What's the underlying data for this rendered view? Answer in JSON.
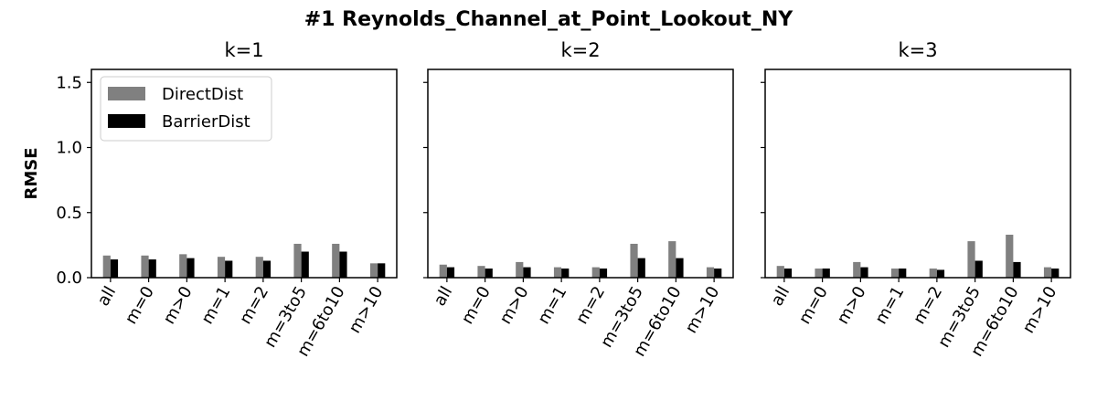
{
  "chart_data": {
    "type": "bar",
    "title": "#1 Reynolds_Channel_at_Point_Lookout_NY",
    "ylabel": "RMSE",
    "ylim": [
      0,
      1.6
    ],
    "yticks": [
      "0.0",
      "0.5",
      "1.0",
      "1.5"
    ],
    "ytick_values": [
      0,
      0.5,
      1.0,
      1.5
    ],
    "legend_position": "upper-left",
    "series_colors": {
      "DirectDist": "#808080",
      "BarrierDist": "#000000"
    },
    "categories": [
      "all",
      "m=0",
      "m>0",
      "m=1",
      "m=2",
      "m=3to5",
      "m=6to10",
      "m>10"
    ],
    "legend": [
      "DirectDist",
      "BarrierDist"
    ],
    "panels": [
      {
        "title": "k=1",
        "series": [
          {
            "name": "DirectDist",
            "values": [
              0.17,
              0.17,
              0.18,
              0.16,
              0.16,
              0.26,
              0.26,
              0.11
            ]
          },
          {
            "name": "BarrierDist",
            "values": [
              0.14,
              0.14,
              0.15,
              0.13,
              0.13,
              0.2,
              0.2,
              0.11
            ]
          }
        ]
      },
      {
        "title": "k=2",
        "series": [
          {
            "name": "DirectDist",
            "values": [
              0.1,
              0.09,
              0.12,
              0.08,
              0.08,
              0.26,
              0.28,
              0.08
            ]
          },
          {
            "name": "BarrierDist",
            "values": [
              0.08,
              0.07,
              0.08,
              0.07,
              0.07,
              0.15,
              0.15,
              0.07
            ]
          }
        ]
      },
      {
        "title": "k=3",
        "series": [
          {
            "name": "DirectDist",
            "values": [
              0.09,
              0.07,
              0.12,
              0.07,
              0.07,
              0.28,
              0.33,
              0.08
            ]
          },
          {
            "name": "BarrierDist",
            "values": [
              0.07,
              0.07,
              0.08,
              0.07,
              0.06,
              0.13,
              0.12,
              0.07
            ]
          }
        ]
      }
    ]
  }
}
